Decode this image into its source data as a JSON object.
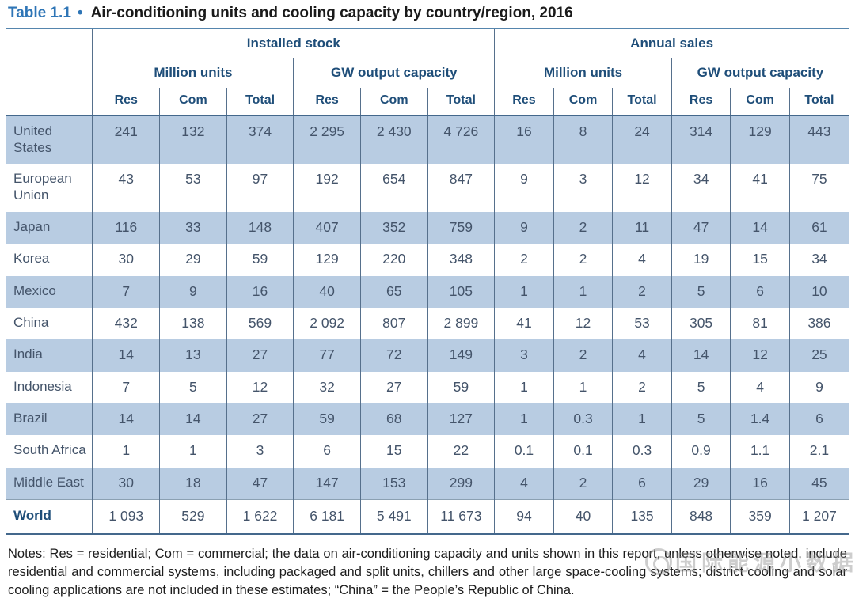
{
  "title": {
    "label": "Table 1.1",
    "bullet": "•",
    "text": "Air-conditioning units and cooling capacity by country/region, 2016"
  },
  "table": {
    "groups": [
      "Installed stock",
      "Annual sales"
    ],
    "subgroups": [
      "Million units",
      "GW output capacity",
      "Million units",
      "GW output capacity"
    ],
    "col_headers": [
      "Res",
      "Com",
      "Total",
      "Res",
      "Com",
      "Total",
      "Res",
      "Com",
      "Total",
      "Res",
      "Com",
      "Total"
    ],
    "rows": [
      {
        "label": "United States",
        "values": [
          "241",
          "132",
          "374",
          "2 295",
          "2 430",
          "4 726",
          "16",
          "8",
          "24",
          "314",
          "129",
          "443"
        ]
      },
      {
        "label": "European Union",
        "values": [
          "43",
          "53",
          "97",
          "192",
          "654",
          "847",
          "9",
          "3",
          "12",
          "34",
          "41",
          "75"
        ]
      },
      {
        "label": "Japan",
        "values": [
          "116",
          "33",
          "148",
          "407",
          "352",
          "759",
          "9",
          "2",
          "11",
          "47",
          "14",
          "61"
        ]
      },
      {
        "label": "Korea",
        "values": [
          "30",
          "29",
          "59",
          "129",
          "220",
          "348",
          "2",
          "2",
          "4",
          "19",
          "15",
          "34"
        ]
      },
      {
        "label": "Mexico",
        "values": [
          "7",
          "9",
          "16",
          "40",
          "65",
          "105",
          "1",
          "1",
          "2",
          "5",
          "6",
          "10"
        ]
      },
      {
        "label": "China",
        "values": [
          "432",
          "138",
          "569",
          "2 092",
          "807",
          "2 899",
          "41",
          "12",
          "53",
          "305",
          "81",
          "386"
        ]
      },
      {
        "label": "India",
        "values": [
          "14",
          "13",
          "27",
          "77",
          "72",
          "149",
          "3",
          "2",
          "4",
          "14",
          "12",
          "25"
        ]
      },
      {
        "label": "Indonesia",
        "values": [
          "7",
          "5",
          "12",
          "32",
          "27",
          "59",
          "1",
          "1",
          "2",
          "5",
          "4",
          "9"
        ]
      },
      {
        "label": "Brazil",
        "values": [
          "14",
          "14",
          "27",
          "59",
          "68",
          "127",
          "1",
          "0.3",
          "1",
          "5",
          "1.4",
          "6"
        ]
      },
      {
        "label": "South Africa",
        "values": [
          "1",
          "1",
          "3",
          "6",
          "15",
          "22",
          "0.1",
          "0.1",
          "0.3",
          "0.9",
          "1.1",
          "2.1"
        ]
      },
      {
        "label": "Middle East",
        "values": [
          "30",
          "18",
          "47",
          "147",
          "153",
          "299",
          "4",
          "2",
          "6",
          "29",
          "16",
          "45"
        ]
      },
      {
        "label": "World",
        "values": [
          "1 093",
          "529",
          "1 622",
          "6 181",
          "5 491",
          "11 673",
          "94",
          "40",
          "135",
          "848",
          "359",
          "1 207"
        ],
        "is_total": true
      }
    ]
  },
  "notes": "Notes: Res = residential; Com = commercial; the data on air-conditioning capacity and units shown in this report, unless otherwise noted, include residential and commercial systems, including packaged and split units, chillers and other large space-cooling systems; district cooling and solar cooling applications are not included in these estimates; “China” = the People’s Republic of China.",
  "watermark": "国际能源小数据",
  "colors": {
    "title_accent": "#2e75b6",
    "header_text": "#1f4e79",
    "body_text": "#44546a",
    "stripe_blue": "#b8cce2",
    "vertical_line": "#56708c",
    "top_line": "#5585ad",
    "heavy_line": "#44688c",
    "light_line": "#8ba0b2"
  }
}
